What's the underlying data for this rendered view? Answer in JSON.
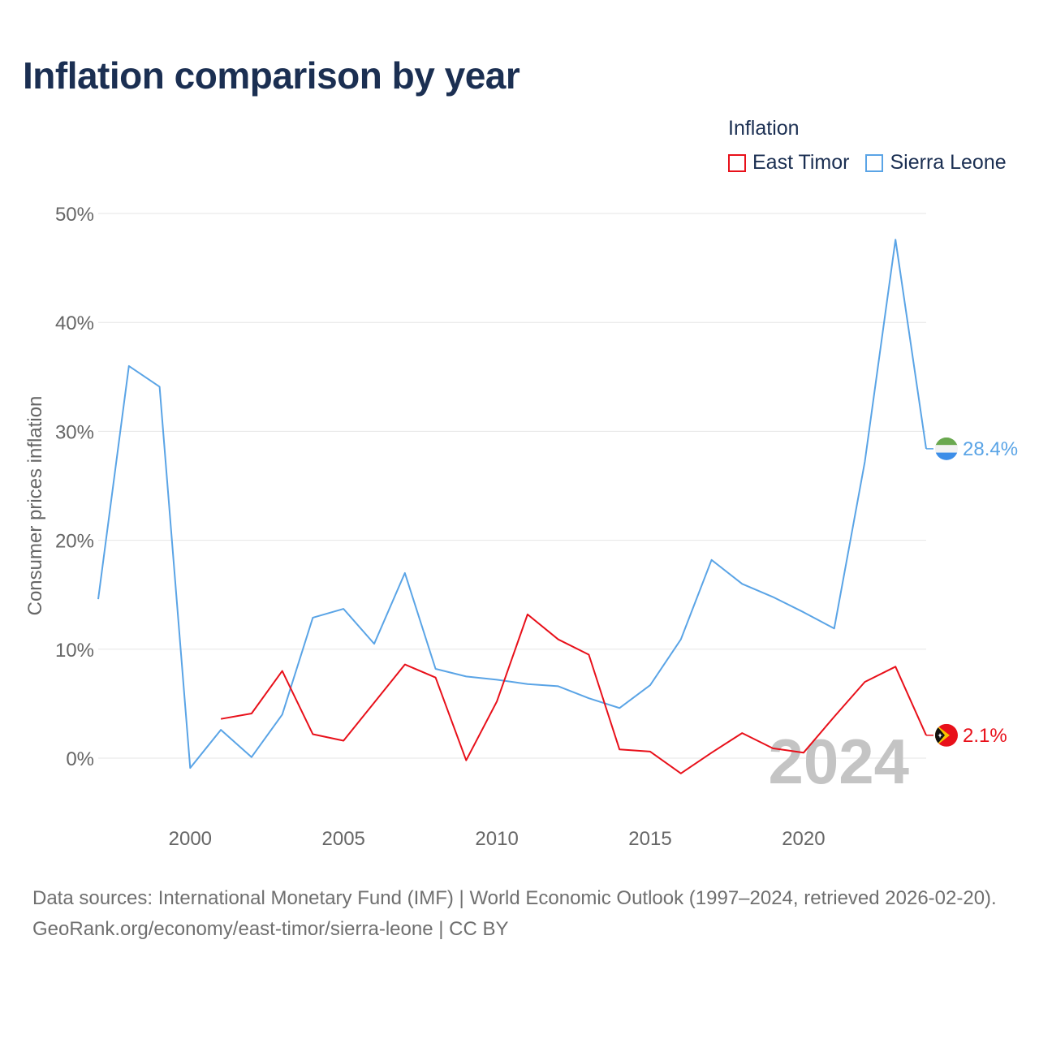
{
  "title": "Inflation comparison by year",
  "legend": {
    "title": "Inflation",
    "items": [
      {
        "label": "East Timor",
        "color": "#e8101a"
      },
      {
        "label": "Sierra Leone",
        "color": "#5aa4e6"
      }
    ]
  },
  "footer": {
    "sources": "Data sources: International Monetary Fund (IMF) | World Economic Outlook (1997–2024, retrieved 2026-02-20).",
    "link": "GeoRank.org/economy/east-timor/sierra-leone | CC BY"
  },
  "chart_data": {
    "type": "line",
    "title": "Inflation comparison by year",
    "xlabel": "",
    "ylabel": "Consumer prices inflation",
    "xlim": [
      1997,
      2024
    ],
    "ylim": [
      -5,
      50
    ],
    "yticks": [
      0,
      10,
      20,
      30,
      40,
      50
    ],
    "ytick_labels": [
      "0%",
      "10%",
      "20%",
      "30%",
      "40%",
      "50%"
    ],
    "xticks": [
      2000,
      2005,
      2010,
      2015,
      2020
    ],
    "xtick_labels": [
      "2000",
      "2005",
      "2010",
      "2015",
      "2020"
    ],
    "year_watermark": "2024",
    "series": [
      {
        "name": "Sierra Leone",
        "color": "#5aa4e6",
        "end_label": "28.4%",
        "flag": "sierra-leone-flag-icon",
        "x": [
          1997,
          1998,
          1999,
          2000,
          2001,
          2002,
          2003,
          2004,
          2005,
          2006,
          2007,
          2008,
          2009,
          2010,
          2011,
          2012,
          2013,
          2014,
          2015,
          2016,
          2017,
          2018,
          2019,
          2020,
          2021,
          2022,
          2023,
          2024
        ],
        "values": [
          14.6,
          36.0,
          34.1,
          -0.9,
          2.6,
          0.1,
          4.0,
          12.9,
          13.7,
          10.5,
          17.0,
          8.2,
          7.5,
          7.2,
          6.8,
          6.6,
          5.5,
          4.6,
          6.7,
          10.9,
          18.2,
          16.0,
          14.8,
          13.4,
          11.9,
          27.2,
          47.6,
          28.4
        ]
      },
      {
        "name": "East Timor",
        "color": "#e8101a",
        "end_label": "2.1%",
        "flag": "east-timor-flag-icon",
        "x": [
          2001,
          2002,
          2003,
          2004,
          2005,
          2006,
          2007,
          2008,
          2009,
          2010,
          2011,
          2012,
          2013,
          2014,
          2015,
          2016,
          2017,
          2018,
          2019,
          2020,
          2021,
          2022,
          2023,
          2024
        ],
        "values": [
          3.6,
          4.1,
          8.0,
          2.2,
          1.6,
          5.1,
          8.6,
          7.4,
          -0.2,
          5.2,
          13.2,
          10.9,
          9.5,
          0.8,
          0.6,
          -1.4,
          0.5,
          2.3,
          0.9,
          0.5,
          3.8,
          7.0,
          8.4,
          2.1
        ]
      }
    ]
  }
}
